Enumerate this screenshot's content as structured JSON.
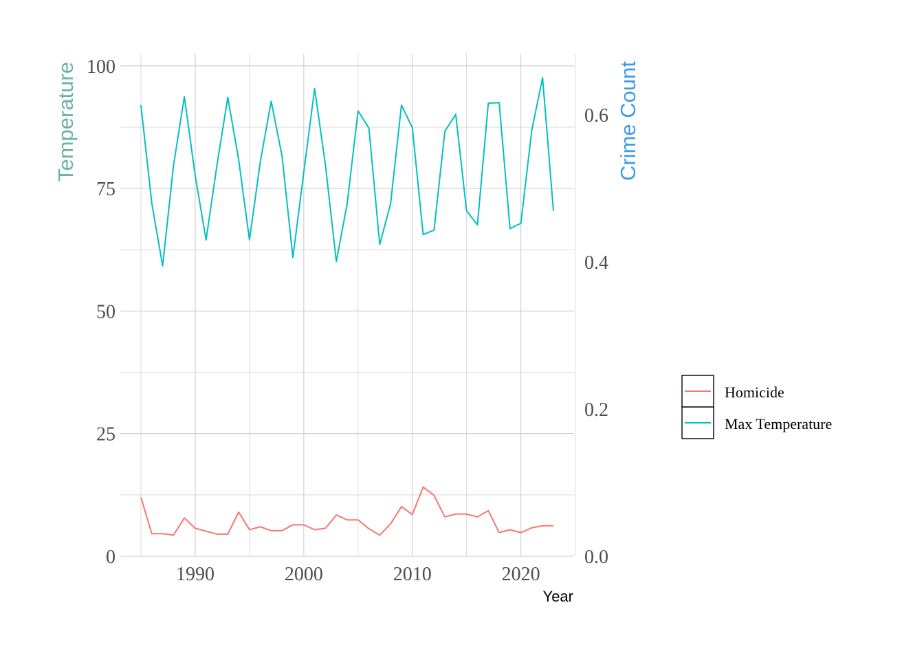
{
  "chart_data": {
    "type": "line",
    "xlabel": "Year",
    "ylabel_left": "Temperature",
    "ylabel_right": "Crime Count",
    "xlim": [
      1983.1,
      2024.9
    ],
    "ylim_left": [
      0,
      102.5
    ],
    "ylim_right": [
      0,
      0.6833
    ],
    "x_ticks": [
      "1990",
      "2000",
      "2010",
      "2020"
    ],
    "y_ticks_left": [
      "0",
      "25",
      "50",
      "75",
      "100"
    ],
    "y_ticks_right": [
      "0.0",
      "0.2",
      "0.4",
      "0.6"
    ],
    "grid": true,
    "legend_position": "right",
    "legend": [
      "Homicide",
      "Max Temperature"
    ],
    "colors": {
      "homicide": "#F8766D",
      "max_temperature": "#00BFC4",
      "left_title": "#69b3a2",
      "right_title": "#3d9be9"
    },
    "x": [
      1985,
      1986,
      1987,
      1988,
      1989,
      1990,
      1991,
      1992,
      1993,
      1994,
      1995,
      1996,
      1997,
      1998,
      1999,
      2000,
      2001,
      2002,
      2003,
      2004,
      2005,
      2006,
      2007,
      2008,
      2009,
      2010,
      2011,
      2012,
      2013,
      2014,
      2015,
      2016,
      2017,
      2018,
      2019,
      2020,
      2021,
      2022,
      2023
    ],
    "series": [
      {
        "name": "Homicide",
        "axis": "left",
        "color": "#F8766D",
        "values": [
          12.0,
          4.6,
          4.6,
          4.3,
          7.8,
          5.7,
          5.1,
          4.5,
          4.5,
          9.0,
          5.4,
          6.0,
          5.2,
          5.2,
          6.4,
          6.4,
          5.4,
          5.7,
          8.4,
          7.4,
          7.4,
          5.6,
          4.3,
          6.6,
          10.1,
          8.5,
          14.1,
          12.4,
          8.0,
          8.6,
          8.6,
          8.0,
          9.3,
          4.8,
          5.4,
          4.8,
          5.8,
          6.2,
          6.2
        ]
      },
      {
        "name": "Max Temperature",
        "axis": "left",
        "color": "#00BFC4",
        "values": [
          92.0,
          72.0,
          59.2,
          79.7,
          93.7,
          77.6,
          64.5,
          79.7,
          93.6,
          80.9,
          64.5,
          80.5,
          92.8,
          81.6,
          60.9,
          78.3,
          95.4,
          79.7,
          60.1,
          71.9,
          90.8,
          87.3,
          63.6,
          71.9,
          92.0,
          87.4,
          65.6,
          66.5,
          86.7,
          90.1,
          70.4,
          67.6,
          92.4,
          92.5,
          66.8,
          67.9,
          86.8,
          97.6,
          70.4
        ]
      }
    ]
  }
}
